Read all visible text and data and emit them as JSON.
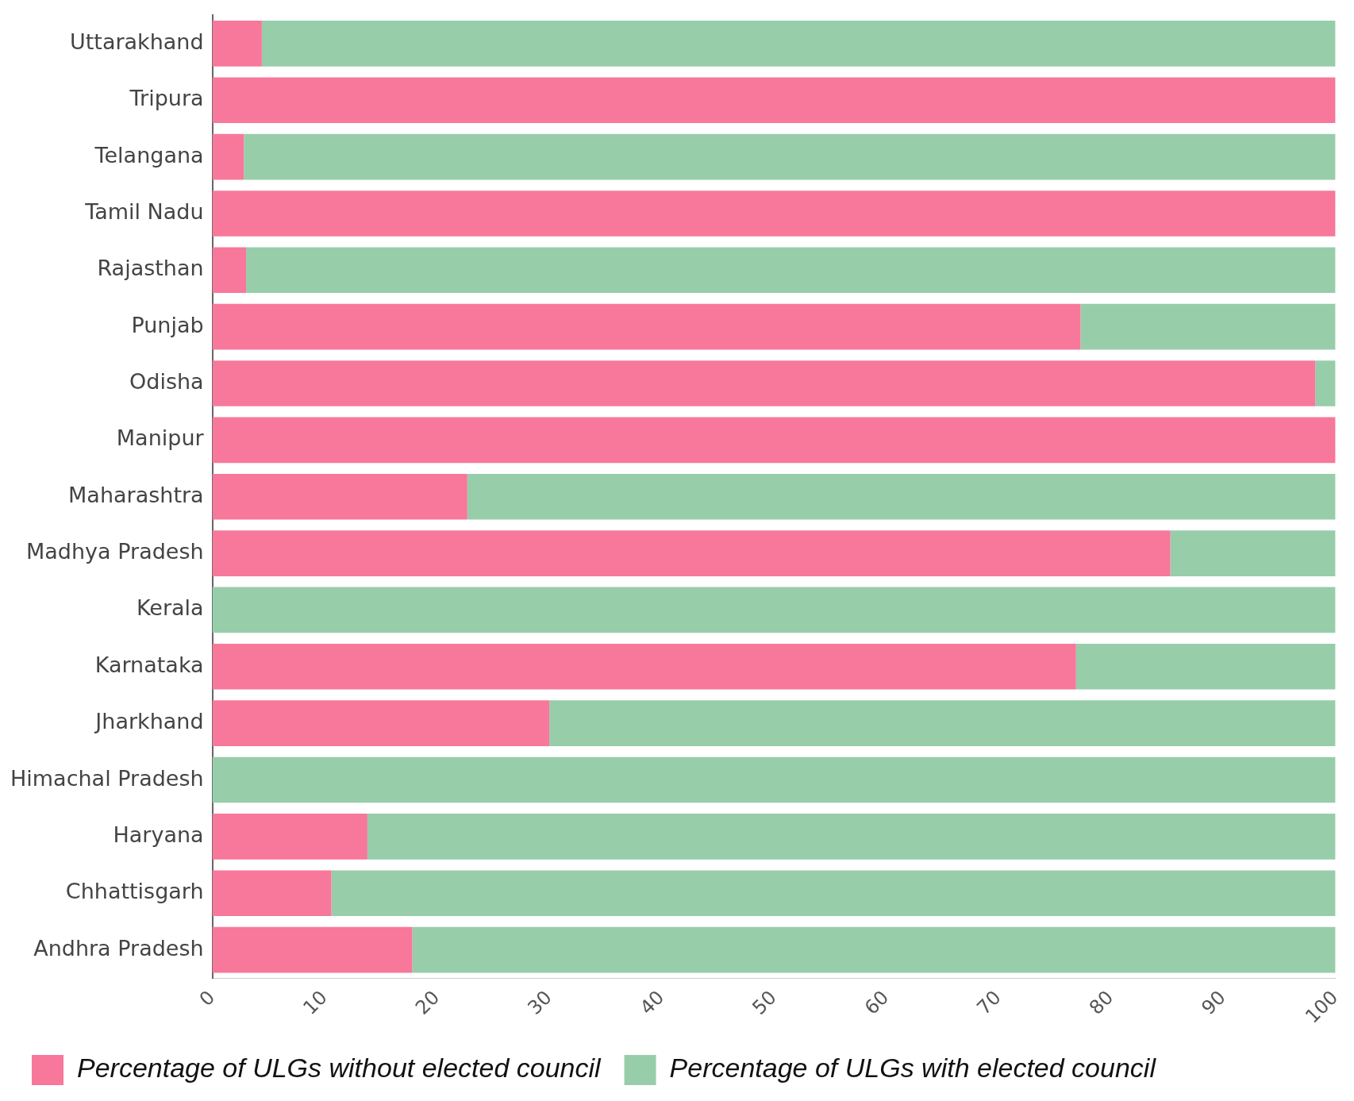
{
  "chart_data": {
    "type": "bar",
    "orientation": "horizontal",
    "stacked": true,
    "categories": [
      "Uttarakhand",
      "Tripura",
      "Telangana",
      "Tamil Nadu",
      "Rajasthan",
      "Punjab",
      "Odisha",
      "Manipur",
      "Maharashtra",
      "Madhya Pradesh",
      "Kerala",
      "Karnataka",
      "Jharkhand",
      "Himachal Pradesh",
      "Haryana",
      "Chhattisgarh",
      "Andhra Pradesh"
    ],
    "series": [
      {
        "name": "Percentage of ULGs without elected council",
        "color": "#f7789a",
        "values": [
          4.4,
          100,
          2.8,
          100,
          3.0,
          77.3,
          98.2,
          100,
          22.7,
          85.3,
          0,
          76.9,
          30.0,
          0,
          13.8,
          10.6,
          17.8
        ]
      },
      {
        "name": "Percentage of ULGs with elected council",
        "color": "#98cdaa",
        "values": [
          95.6,
          0,
          97.2,
          0,
          97.0,
          22.7,
          1.8,
          0,
          77.3,
          14.7,
          100,
          23.1,
          70.0,
          100,
          86.2,
          89.4,
          82.2
        ]
      }
    ],
    "xlim": [
      0,
      100
    ],
    "xticks": [
      0,
      10,
      20,
      30,
      40,
      50,
      60,
      70,
      80,
      90,
      100
    ],
    "grid": false,
    "legend": "bottom"
  }
}
